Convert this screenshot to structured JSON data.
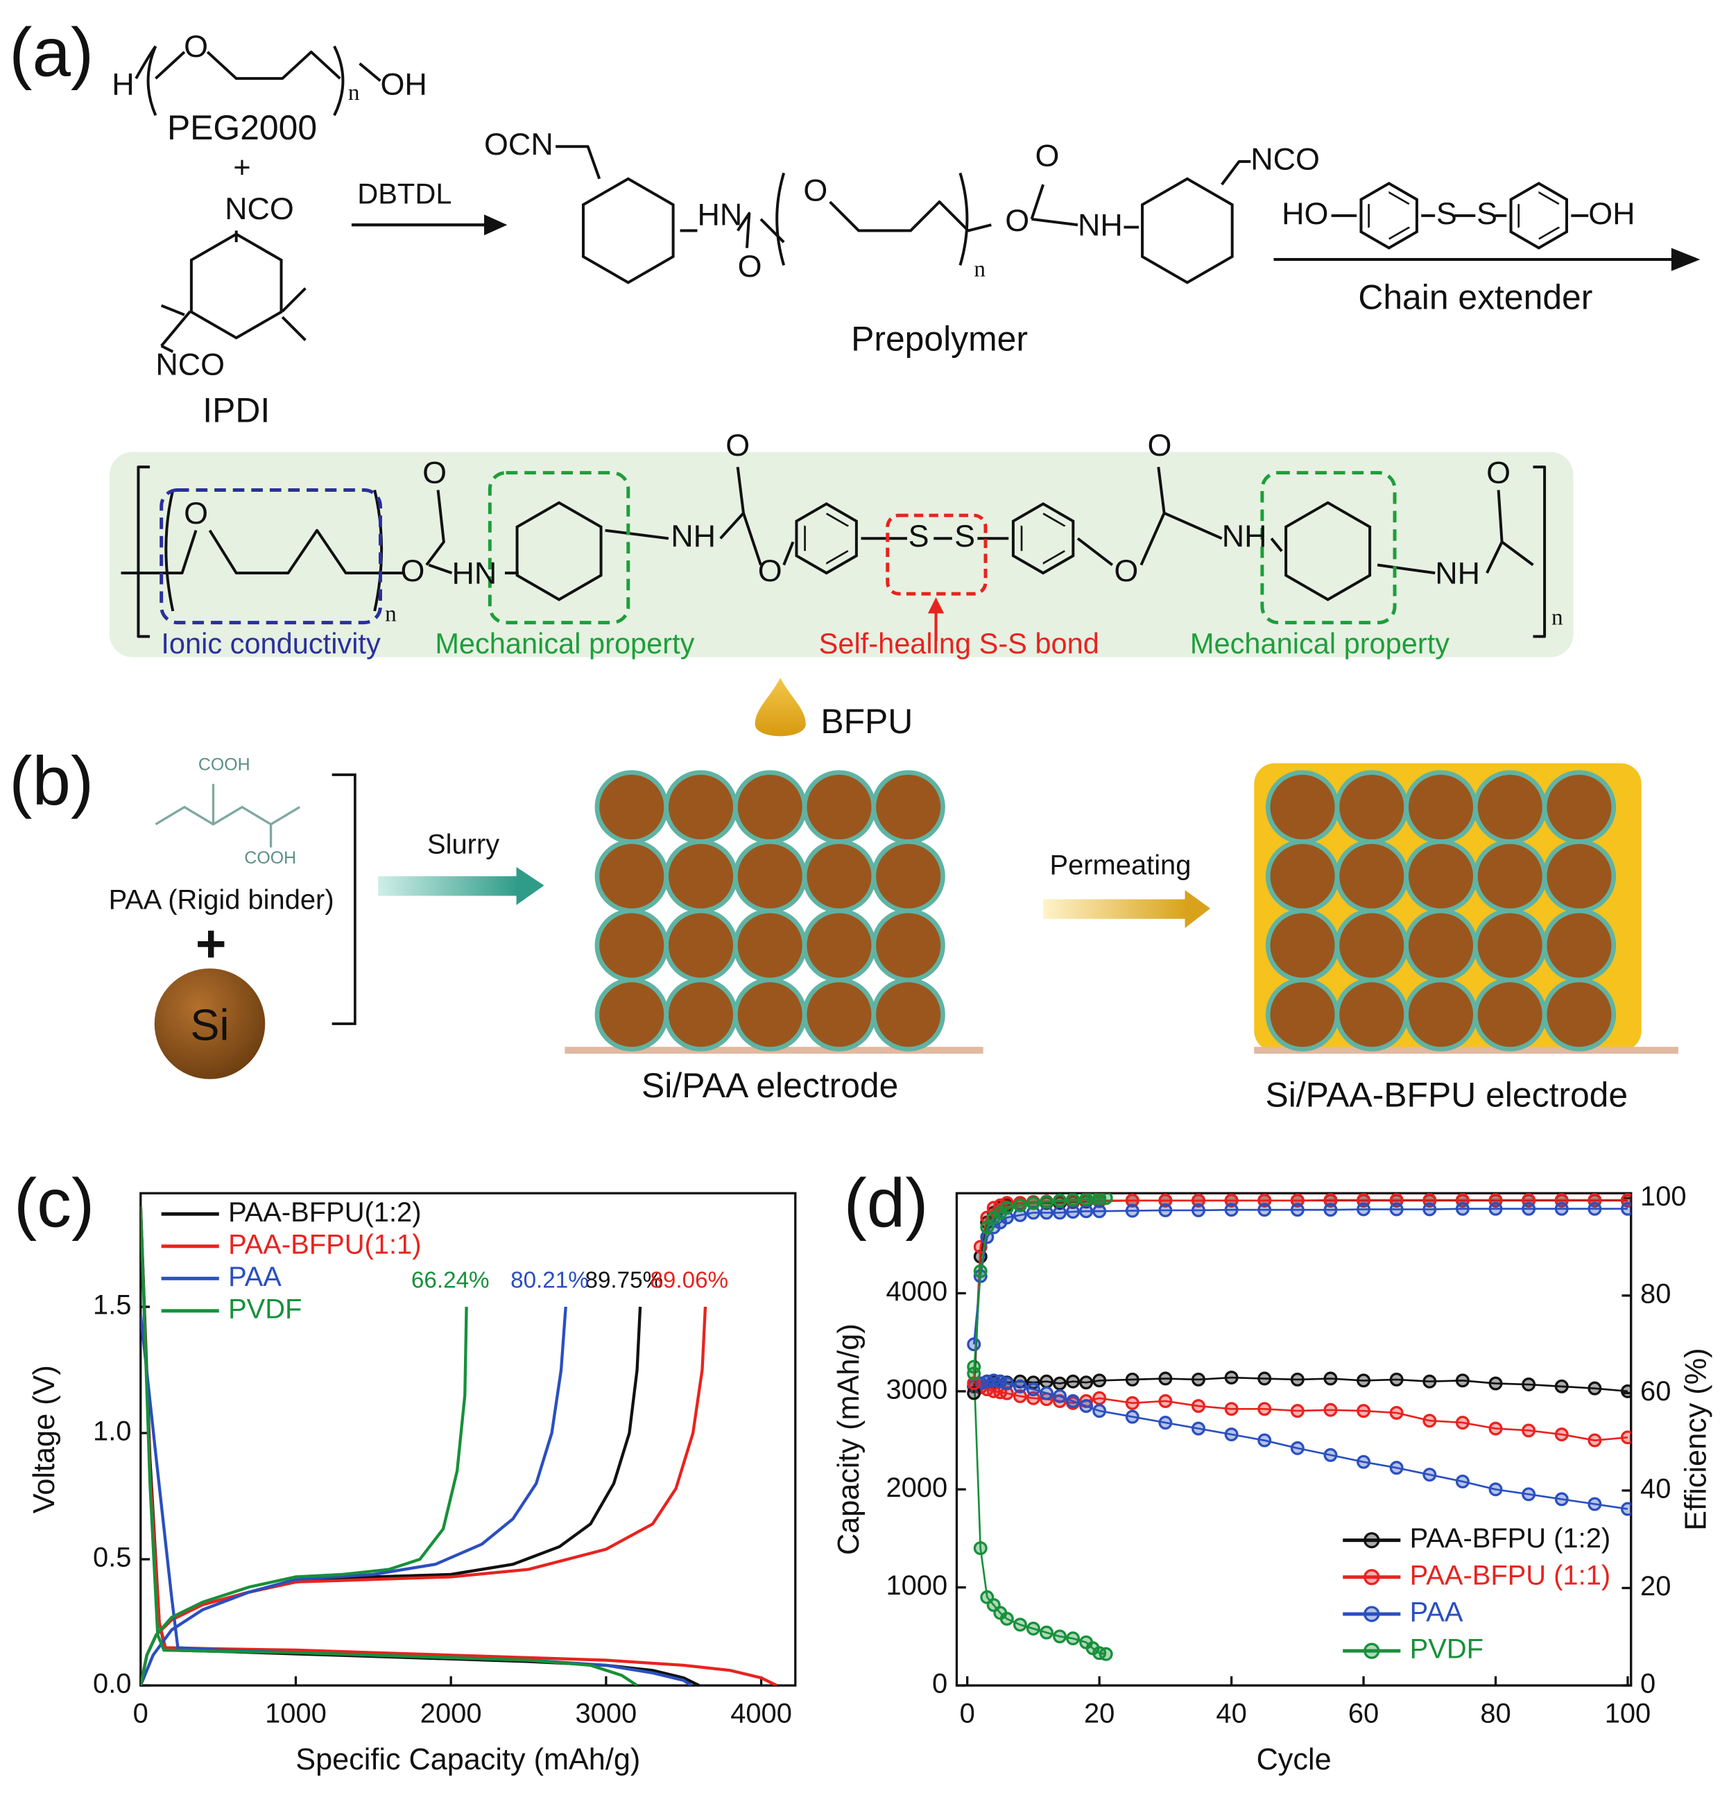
{
  "scheme": {
    "label_a": "(a)",
    "peg": {
      "h": "H",
      "o": "O",
      "n": "n",
      "oh": "OH",
      "name": "PEG2000"
    },
    "plus": "+",
    "ipdi": {
      "nco_top": "NCO",
      "nco_bottom": "NCO",
      "name": "IPDI"
    },
    "catalyst": "DBTDL",
    "prepolymer": {
      "ocn": "OCN",
      "hn": "HN",
      "o_carbonyl": "O",
      "o_chain": "O",
      "n": "n",
      "o_ester": "O",
      "o_carbonyl2": "O",
      "nh": "NH",
      "nco": "NCO",
      "name": "Prepolymer"
    },
    "extender": {
      "ho": "HO",
      "s1": "S",
      "s2": "S",
      "oh": "OH",
      "name": "Chain extender"
    },
    "polymer": {
      "atoms": [
        "O",
        "n",
        "O",
        "O",
        "HN",
        "NH",
        "O",
        "O",
        "S",
        "S",
        "O",
        "O",
        "NH",
        "NH",
        "O",
        "n"
      ],
      "features": [
        "Ionic conductivity",
        "Mechanical property",
        "Self-healing S-S bond",
        "Mechanical property"
      ]
    }
  },
  "process": {
    "label_b": "(b)",
    "cooh1": "COOH",
    "cooh2": "COOH",
    "paa": "PAA (Rigid binder)",
    "plus": "+",
    "si": "Si",
    "slurry": "Slurry",
    "bfpu": "BFPU",
    "permeating": "Permeating",
    "electrode1": "Si/PAA electrode",
    "electrode2": "Si/PAA-BFPU electrode"
  },
  "chart_data": [
    {
      "type": "line",
      "panel": "(c)",
      "xlabel": "Specific Capacity (mAh/g)",
      "ylabel": "Voltage (V)",
      "xlim": [
        0,
        4220
      ],
      "ylim": [
        0,
        1.95
      ],
      "xticks": [
        0,
        1000,
        2000,
        3000,
        4000
      ],
      "yticks": [
        {
          "value": 0,
          "label": "0.0"
        },
        0.5,
        {
          "value": 1,
          "label": "1.0"
        },
        1.5
      ],
      "legend": "upper left",
      "series": [
        {
          "name": "PAA-BFPU(1:2)",
          "color": "#111111",
          "end_label": "89.75%",
          "x": [
            0,
            60,
            120,
            160,
            500,
            1000,
            1500,
            2000,
            2500,
            3000,
            3300,
            3500,
            3600,
            null,
            0,
            40,
            100,
            200,
            400,
            700,
            1000,
            1500,
            2000,
            2400,
            2700,
            2900,
            3050,
            3150,
            3200,
            3220
          ],
          "values": [
            1.9,
            0.9,
            0.25,
            0.14,
            0.135,
            0.125,
            0.115,
            0.105,
            0.095,
            0.08,
            0.06,
            0.03,
            0,
            null,
            0,
            0.12,
            0.2,
            0.26,
            0.32,
            0.37,
            0.41,
            0.43,
            0.44,
            0.48,
            0.55,
            0.64,
            0.8,
            1.0,
            1.25,
            1.5
          ]
        },
        {
          "name": "PAA-BFPU(1:1)",
          "color": "#e8231f",
          "end_label": "89.06%",
          "x": [
            0,
            60,
            120,
            160,
            500,
            1000,
            1500,
            2000,
            2500,
            3000,
            3500,
            3800,
            4000,
            4100,
            null,
            0,
            40,
            100,
            200,
            400,
            700,
            1000,
            1500,
            2000,
            2500,
            3000,
            3300,
            3450,
            3560,
            3620,
            3640
          ],
          "values": [
            1.9,
            0.85,
            0.25,
            0.15,
            0.145,
            0.14,
            0.13,
            0.12,
            0.11,
            0.1,
            0.08,
            0.06,
            0.03,
            0,
            null,
            0,
            0.12,
            0.2,
            0.26,
            0.32,
            0.37,
            0.41,
            0.42,
            0.43,
            0.46,
            0.54,
            0.64,
            0.78,
            1.0,
            1.25,
            1.5
          ]
        },
        {
          "name": "PAA",
          "color": "#2a4fbf",
          "end_label": "80.21%",
          "x": [
            0,
            100,
            200,
            240,
            500,
            1000,
            1500,
            2000,
            2500,
            3000,
            3300,
            3500,
            3550,
            null,
            0,
            80,
            200,
            400,
            700,
            1000,
            1500,
            1900,
            2200,
            2400,
            2550,
            2650,
            2710,
            2740
          ],
          "values": [
            1.47,
            0.9,
            0.35,
            0.15,
            0.14,
            0.13,
            0.12,
            0.11,
            0.1,
            0.08,
            0.05,
            0.02,
            0,
            null,
            0,
            0.12,
            0.22,
            0.3,
            0.37,
            0.42,
            0.44,
            0.48,
            0.56,
            0.66,
            0.8,
            1.0,
            1.25,
            1.5
          ]
        },
        {
          "name": "PVDF",
          "color": "#17903a",
          "end_label": "66.24%",
          "x": [
            0,
            60,
            110,
            150,
            500,
            1000,
            1500,
            2000,
            2500,
            2900,
            3100,
            3200,
            null,
            0,
            40,
            100,
            200,
            400,
            700,
            1000,
            1300,
            1600,
            1800,
            1950,
            2040,
            2090,
            2100
          ],
          "values": [
            1.9,
            0.8,
            0.2,
            0.14,
            0.135,
            0.13,
            0.12,
            0.11,
            0.1,
            0.08,
            0.04,
            0,
            null,
            0,
            0.12,
            0.2,
            0.27,
            0.33,
            0.39,
            0.43,
            0.44,
            0.46,
            0.5,
            0.62,
            0.85,
            1.15,
            1.5
          ]
        }
      ]
    },
    {
      "type": "line",
      "panel": "(d)",
      "marker": "circle",
      "xlabel": "Cycle",
      "ylabel": "Capacity (mAh/g)",
      "y2label": "Efficiency (%)",
      "xlim": [
        -1.6,
        100.5
      ],
      "ylim": [
        0,
        5020
      ],
      "y2lim": [
        0,
        101
      ],
      "xticks": [
        0,
        20,
        40,
        60,
        80,
        100
      ],
      "yticks": [
        0,
        1000,
        2000,
        3000,
        4000
      ],
      "y2ticks": [
        0,
        20,
        40,
        60,
        80,
        100
      ],
      "legend": "lower right",
      "series": [
        {
          "name": "PAA-BFPU (1:2)",
          "color": "#111111",
          "x": [
            1,
            2,
            3,
            4,
            5,
            6,
            8,
            10,
            12,
            14,
            16,
            18,
            20,
            25,
            30,
            35,
            40,
            45,
            50,
            55,
            60,
            65,
            70,
            75,
            80,
            85,
            90,
            95,
            100
          ],
          "values": [
            3050,
            3080,
            3100,
            3090,
            3100,
            3090,
            3100,
            3090,
            3100,
            3080,
            3100,
            3090,
            3110,
            3120,
            3130,
            3120,
            3140,
            3130,
            3120,
            3130,
            3110,
            3120,
            3100,
            3110,
            3080,
            3070,
            3050,
            3030,
            3000
          ]
        },
        {
          "name": "PAA-BFPU (1:1)",
          "color": "#e8231f",
          "x": [
            1,
            2,
            3,
            4,
            5,
            6,
            8,
            10,
            12,
            14,
            16,
            18,
            20,
            25,
            30,
            35,
            40,
            45,
            50,
            55,
            60,
            65,
            70,
            75,
            80,
            85,
            90,
            95,
            100
          ],
          "values": [
            3050,
            3040,
            3020,
            3000,
            2990,
            2980,
            2950,
            2930,
            2920,
            2900,
            2880,
            2900,
            2930,
            2880,
            2900,
            2850,
            2820,
            2820,
            2800,
            2810,
            2800,
            2780,
            2700,
            2680,
            2620,
            2600,
            2560,
            2500,
            2530
          ]
        },
        {
          "name": "PAA",
          "color": "#2a4fbf",
          "x": [
            1,
            2,
            3,
            4,
            5,
            6,
            8,
            10,
            12,
            14,
            16,
            18,
            20,
            25,
            30,
            35,
            40,
            45,
            50,
            55,
            60,
            65,
            70,
            75,
            80,
            85,
            90,
            95,
            100
          ],
          "values": [
            3050,
            3080,
            3100,
            3110,
            3100,
            3080,
            3050,
            3020,
            2980,
            2950,
            2900,
            2850,
            2800,
            2740,
            2680,
            2620,
            2560,
            2500,
            2420,
            2350,
            2280,
            2220,
            2150,
            2080,
            2000,
            1950,
            1900,
            1850,
            1800
          ]
        },
        {
          "name": "PVDF",
          "color": "#17903a",
          "x": [
            1,
            2,
            3,
            4,
            5,
            6,
            8,
            10,
            12,
            14,
            16,
            18,
            19,
            20,
            21
          ],
          "values": [
            3250,
            1400,
            900,
            820,
            740,
            680,
            620,
            580,
            540,
            500,
            480,
            440,
            380,
            330,
            320
          ]
        },
        {
          "color": "#111111",
          "axis": "y2",
          "x": [
            1,
            2,
            3,
            4,
            5,
            6,
            8,
            10,
            12,
            14,
            16,
            18,
            20,
            25,
            30,
            35,
            40,
            45,
            50,
            55,
            60,
            65,
            70,
            75,
            80,
            85,
            90,
            95,
            100
          ],
          "values": [
            60,
            88,
            95,
            97,
            98,
            98.5,
            99,
            99,
            99,
            99,
            99.2,
            99.3,
            99.4,
            99.5,
            99.5,
            99.5,
            99.5,
            99.5,
            99.5,
            99.5,
            99.5,
            99.5,
            99.5,
            99.5,
            99.5,
            99.5,
            99.5,
            99.5,
            99.5
          ]
        },
        {
          "color": "#e8231f",
          "axis": "y2",
          "x": [
            1,
            2,
            3,
            4,
            5,
            6,
            8,
            10,
            12,
            14,
            16,
            18,
            20,
            25,
            30,
            35,
            40,
            45,
            50,
            55,
            60,
            65,
            70,
            75,
            80,
            85,
            90,
            95,
            100
          ],
          "values": [
            62,
            90,
            96,
            98,
            98.5,
            99,
            99,
            99.2,
            99.3,
            99.4,
            99.4,
            99.5,
            99.5,
            99.5,
            99.5,
            99.5,
            99.5,
            99.5,
            99.5,
            99.6,
            99.6,
            99.6,
            99.6,
            99.6,
            99.6,
            99.6,
            99.6,
            99.6,
            99.6
          ]
        },
        {
          "color": "#2a4fbf",
          "axis": "y2",
          "x": [
            1,
            2,
            3,
            4,
            5,
            6,
            8,
            10,
            12,
            14,
            16,
            18,
            20,
            25,
            30,
            35,
            40,
            45,
            50,
            55,
            60,
            65,
            70,
            75,
            80,
            85,
            90,
            95,
            100
          ],
          "values": [
            70,
            84,
            92,
            94,
            95,
            96,
            96.5,
            97,
            97,
            97,
            97.2,
            97.3,
            97.3,
            97.4,
            97.5,
            97.5,
            97.6,
            97.6,
            97.6,
            97.6,
            97.7,
            97.7,
            97.7,
            97.8,
            97.8,
            97.8,
            97.8,
            97.8,
            97.8
          ]
        },
        {
          "color": "#17903a",
          "axis": "y2",
          "x": [
            1,
            2,
            3,
            4,
            5,
            6,
            8,
            10,
            12,
            14,
            16,
            18,
            19,
            20,
            21
          ],
          "values": [
            64,
            85,
            94,
            96,
            97,
            98,
            98.5,
            99,
            99.2,
            99.5,
            99.7,
            99.8,
            100,
            100,
            100
          ]
        }
      ]
    }
  ]
}
